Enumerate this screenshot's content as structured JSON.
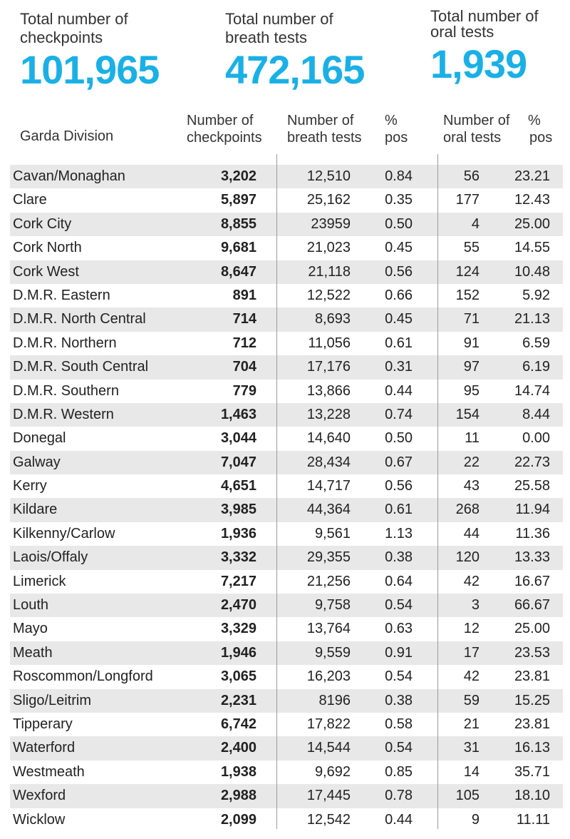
{
  "totals": [
    {
      "label_line1": "Total number of",
      "label_line2": "checkpoints",
      "value": "101,965"
    },
    {
      "label_line1": "Total number of",
      "label_line2": "breath tests",
      "value": "472,165"
    },
    {
      "label_line1": "Total number of",
      "label_line2": "oral tests",
      "value": "1,939"
    }
  ],
  "headers": {
    "division": "Garda Division",
    "checkpoints_l1": "Number of",
    "checkpoints_l2": "checkpoints",
    "breath_l1": "Number of",
    "breath_l2": "breath tests",
    "breath_pos_l1": "%",
    "breath_pos_l2": "pos",
    "oral_l1": "Number of",
    "oral_l2": "oral tests",
    "oral_pos_l1": "%",
    "oral_pos_l2": "pos"
  },
  "chart_data": {
    "type": "table",
    "columns": [
      "Garda Division",
      "Number of checkpoints",
      "Number of breath tests",
      "% pos",
      "Number of oral tests",
      "% pos"
    ],
    "rows": [
      [
        "Cavan/Monaghan",
        "3,202",
        "12,510",
        "0.84",
        "56",
        "23.21"
      ],
      [
        "Clare",
        "5,897",
        "25,162",
        "0.35",
        "177",
        "12.43"
      ],
      [
        "Cork City",
        "8,855",
        "23959",
        "0.50",
        "4",
        "25.00"
      ],
      [
        "Cork North",
        "9,681",
        "21,023",
        "0.45",
        "55",
        "14.55"
      ],
      [
        "Cork West",
        "8,647",
        "21,118",
        "0.56",
        "124",
        "10.48"
      ],
      [
        "D.M.R. Eastern",
        "891",
        "12,522",
        "0.66",
        "152",
        "5.92"
      ],
      [
        "D.M.R. North Central",
        "714",
        "8,693",
        "0.45",
        "71",
        "21.13"
      ],
      [
        "D.M.R. Northern",
        "712",
        "11,056",
        "0.61",
        "91",
        "6.59"
      ],
      [
        "D.M.R. South Central",
        "704",
        "17,176",
        "0.31",
        "97",
        "6.19"
      ],
      [
        "D.M.R. Southern",
        "779",
        "13,866",
        "0.44",
        "95",
        "14.74"
      ],
      [
        "D.M.R. Western",
        "1,463",
        "13,228",
        "0.74",
        "154",
        "8.44"
      ],
      [
        "Donegal",
        "3,044",
        "14,640",
        "0.50",
        "11",
        "0.00"
      ],
      [
        "Galway",
        "7,047",
        "28,434",
        "0.67",
        "22",
        "22.73"
      ],
      [
        "Kerry",
        "4,651",
        "14,717",
        "0.56",
        "43",
        "25.58"
      ],
      [
        "Kildare",
        "3,985",
        "44,364",
        "0.61",
        "268",
        "11.94"
      ],
      [
        "Kilkenny/Carlow",
        "1,936",
        "9,561",
        "1.13",
        "44",
        "11.36"
      ],
      [
        "Laois/Offaly",
        "3,332",
        "29,355",
        "0.38",
        "120",
        "13.33"
      ],
      [
        "Limerick",
        "7,217",
        "21,256",
        "0.64",
        "42",
        "16.67"
      ],
      [
        "Louth",
        "2,470",
        "9,758",
        "0.54",
        "3",
        "66.67"
      ],
      [
        "Mayo",
        "3,329",
        "13,764",
        "0.63",
        "12",
        "25.00"
      ],
      [
        "Meath",
        "1,946",
        "9,559",
        "0.91",
        "17",
        "23.53"
      ],
      [
        "Roscommon/Longford",
        "3,065",
        "16,203",
        "0.54",
        "42",
        "23.81"
      ],
      [
        "Sligo/Leitrim",
        "2,231",
        "8196",
        "0.38",
        "59",
        "15.25"
      ],
      [
        "Tipperary",
        "6,742",
        "17,822",
        "0.58",
        "21",
        "23.81"
      ],
      [
        "Waterford",
        "2,400",
        "14,544",
        "0.54",
        "31",
        "16.13"
      ],
      [
        "Westmeath",
        "1,938",
        "9,692",
        "0.85",
        "14",
        "35.71"
      ],
      [
        "Wexford",
        "2,988",
        "17,445",
        "0.78",
        "105",
        "18.10"
      ],
      [
        "Wicklow",
        "2,099",
        "12,542",
        "0.44",
        "9",
        "11.11"
      ]
    ]
  }
}
